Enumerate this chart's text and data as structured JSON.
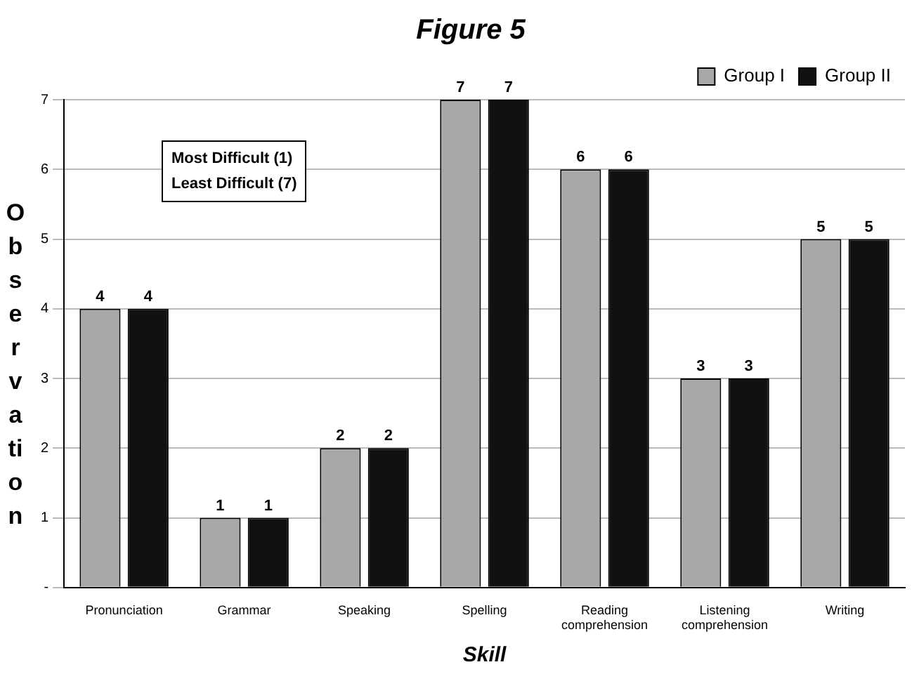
{
  "chart_data": {
    "type": "bar",
    "title": "Figure 5",
    "xlabel": "Skill",
    "ylabel": "Observation",
    "categories": [
      "Pronunciation",
      "Grammar",
      "Speaking",
      "Spelling",
      "Reading comprehension",
      "Listening comprehension",
      "Writing"
    ],
    "series": [
      {
        "name": "Group I",
        "color": "#a8a8a8",
        "values": [
          4,
          1,
          2,
          7,
          6,
          3,
          5
        ]
      },
      {
        "name": "Group II",
        "color": "#111111",
        "values": [
          4,
          1,
          2,
          7,
          6,
          3,
          5
        ]
      }
    ],
    "ylim": [
      0,
      7
    ],
    "yticks": [
      {
        "value": 0,
        "label": "-"
      },
      1,
      2,
      3,
      4,
      5,
      6,
      7
    ],
    "grid": "y",
    "legend": "top right",
    "data_labels": true,
    "annotations": [
      "Most Difficult (1)",
      "Least Difficult (7)"
    ]
  }
}
